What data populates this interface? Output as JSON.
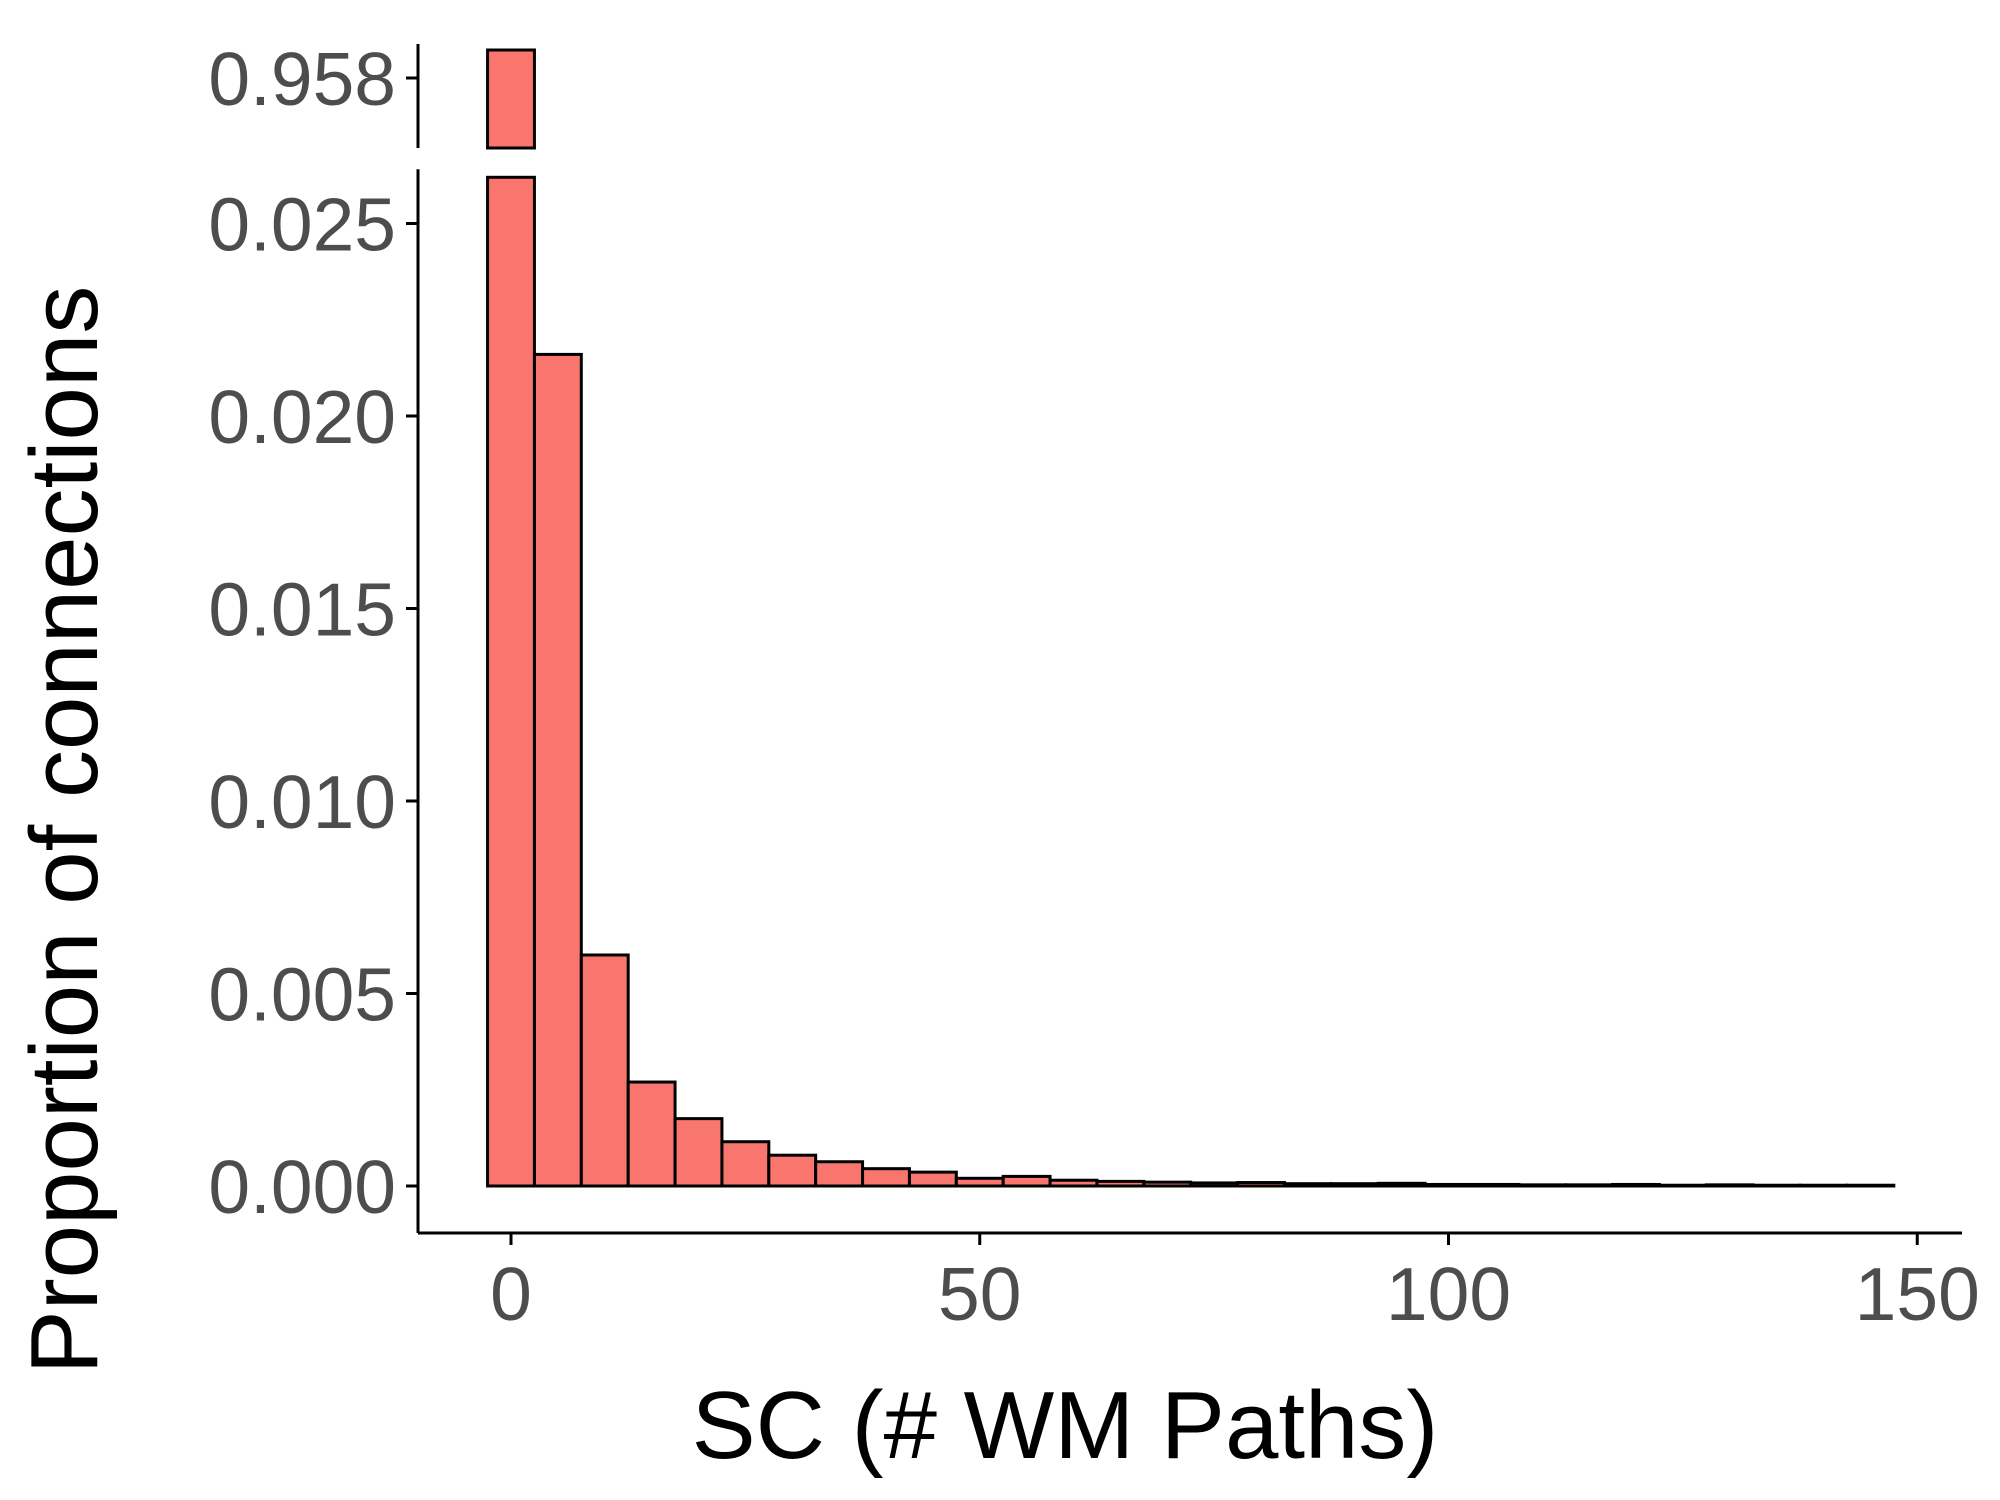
{
  "chart_data": {
    "type": "bar",
    "title": "",
    "xlabel": "SC (# WM Paths)",
    "ylabel": "Proportion of connections",
    "bar_color": "#F8766D",
    "outline_color": "#000000",
    "tick_color": "#4d4d4d",
    "binwidth": 5,
    "xlim": [
      -10,
      155
    ],
    "ylim": [
      0,
      0.0262
    ],
    "x_ticks": [
      0,
      50,
      100,
      150
    ],
    "x_tick_labels": [
      "0",
      "50",
      "100",
      "150"
    ],
    "y_ticks": [
      0,
      0.005,
      0.01,
      0.015,
      0.02,
      0.025
    ],
    "y_tick_labels": [
      "0.000",
      "0.005",
      "0.010",
      "0.015",
      "0.020",
      "0.025"
    ],
    "axis_break": {
      "after": 0.0262,
      "upper_tick": 0.958,
      "upper_tick_label": "0.958"
    },
    "bin_centers": [
      0,
      5,
      10,
      15,
      20,
      25,
      30,
      35,
      40,
      45,
      50,
      55,
      60,
      65,
      70,
      75,
      80,
      85,
      90,
      95,
      100,
      105,
      110,
      115,
      120,
      125,
      130,
      135,
      140,
      145
    ],
    "values": [
      0.958,
      0.0216,
      0.006,
      0.0027,
      0.00175,
      0.00115,
      0.0008,
      0.00063,
      0.00045,
      0.00036,
      0.0002,
      0.00025,
      0.00015,
      0.00012,
      0.0001,
      8e-05,
      9e-05,
      6e-05,
      6e-05,
      7e-05,
      4e-05,
      4e-05,
      3e-05,
      3e-05,
      4e-05,
      2e-05,
      3e-05,
      2e-05,
      2e-05,
      2e-05
    ],
    "grid": false,
    "legend": "none"
  }
}
